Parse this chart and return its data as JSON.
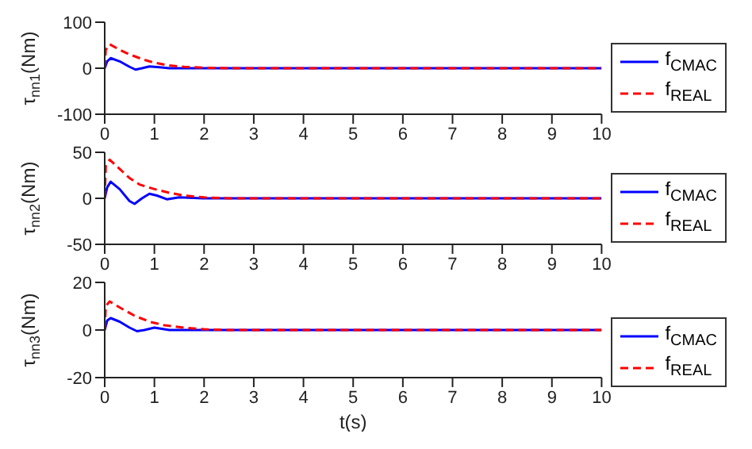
{
  "chart_data": [
    {
      "type": "line",
      "ylabel": "τ$_{nn1}$(Nm)",
      "xlim": [
        0,
        10
      ],
      "xticks": [
        0,
        1,
        2,
        3,
        4,
        5,
        6,
        7,
        8,
        9,
        10
      ],
      "ylim": [
        -100,
        100
      ],
      "yticks": [
        -100,
        0,
        100
      ],
      "grid": false,
      "legend": "right",
      "marker": "none",
      "series": [
        {
          "name": "f$_{CMAC}$",
          "color": "#0000ff",
          "line_style": "solid",
          "x": [
            0,
            0.05,
            0.12,
            0.3,
            0.5,
            0.62,
            0.75,
            0.9,
            1.1,
            1.3,
            1.6,
            2,
            10
          ],
          "values": [
            0,
            15,
            22,
            15,
            3,
            -3,
            0,
            4,
            2,
            0,
            0,
            0,
            0
          ]
        },
        {
          "name": "f$_{REAL}$",
          "color": "#ff0000",
          "line_style": "dashed",
          "x": [
            0,
            0.02,
            0.1,
            0.3,
            0.5,
            0.8,
            1.0,
            1.3,
            1.6,
            2,
            2.5,
            10
          ],
          "values": [
            0,
            40,
            52,
            40,
            30,
            18,
            12,
            6,
            3,
            1,
            0,
            0
          ]
        }
      ]
    },
    {
      "type": "line",
      "ylabel": "τ$_{nn2}$(Nm)",
      "xlim": [
        0,
        10
      ],
      "xticks": [
        0,
        1,
        2,
        3,
        4,
        5,
        6,
        7,
        8,
        9,
        10
      ],
      "ylim": [
        -50,
        50
      ],
      "yticks": [
        -50,
        0,
        50
      ],
      "grid": false,
      "legend": "right",
      "marker": "none",
      "series": [
        {
          "name": "f$_{CMAC}$",
          "color": "#0000ff",
          "line_style": "solid",
          "x": [
            0,
            0.05,
            0.12,
            0.3,
            0.5,
            0.6,
            0.75,
            0.9,
            1.05,
            1.25,
            1.5,
            2,
            10
          ],
          "values": [
            0,
            12,
            18,
            10,
            -3,
            -6,
            0,
            5,
            3,
            -1,
            1,
            0,
            0
          ]
        },
        {
          "name": "f$_{REAL}$",
          "color": "#ff0000",
          "line_style": "dashed",
          "x": [
            0,
            0.02,
            0.1,
            0.3,
            0.5,
            0.7,
            1.0,
            1.3,
            1.6,
            2,
            2.5,
            10
          ],
          "values": [
            0,
            35,
            42,
            32,
            22,
            15,
            10,
            6,
            3,
            1,
            0,
            0
          ]
        }
      ]
    },
    {
      "type": "line",
      "ylabel": "τ$_{nn3}$(Nm)",
      "xlabel": "t(s)",
      "xlim": [
        0,
        10
      ],
      "xticks": [
        0,
        1,
        2,
        3,
        4,
        5,
        6,
        7,
        8,
        9,
        10
      ],
      "ylim": [
        -20,
        20
      ],
      "yticks": [
        -20,
        0,
        20
      ],
      "grid": false,
      "legend": "right",
      "marker": "none",
      "series": [
        {
          "name": "f$_{CMAC}$",
          "color": "#0000ff",
          "line_style": "solid",
          "x": [
            0,
            0.05,
            0.12,
            0.3,
            0.5,
            0.65,
            0.8,
            1,
            1.3,
            10
          ],
          "values": [
            0,
            4,
            5,
            3.5,
            1,
            -0.5,
            0,
            1,
            0,
            0
          ]
        },
        {
          "name": "f$_{REAL}$",
          "color": "#ff0000",
          "line_style": "dashed",
          "x": [
            0,
            0.02,
            0.1,
            0.3,
            0.6,
            0.9,
            1.2,
            1.6,
            2,
            2.5,
            10
          ],
          "values": [
            0,
            10,
            12,
            9.5,
            6,
            3.5,
            2,
            1,
            0.3,
            0,
            0
          ]
        }
      ]
    }
  ]
}
